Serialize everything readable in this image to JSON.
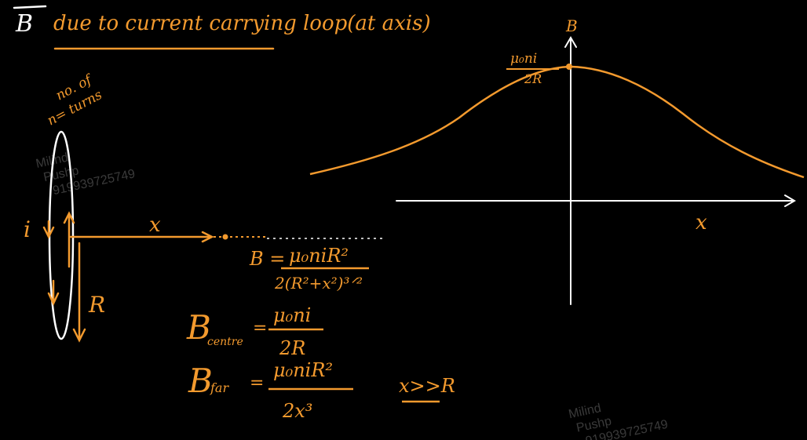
{
  "title": {
    "vec": "B",
    "rest": "due to current carrying loop(at axis)"
  },
  "loop_labels": {
    "turns_top": "no. of",
    "turns_bottom": "n= turns",
    "current": "i",
    "distance": "x",
    "radius": "R"
  },
  "formulas": {
    "axis_lhs": "B =",
    "axis_num": "μ₀niR²",
    "axis_den": "2(R²+x²)³ᐟ²",
    "centre_B": "B",
    "centre_sub": "centre",
    "centre_eq": "=",
    "centre_num": "μ₀ni",
    "centre_den": "2R",
    "far_B": "B",
    "far_sub": "far",
    "far_eq": "=",
    "far_num": "μ₀niR²",
    "far_den": "2x³",
    "condition": "x>>R"
  },
  "graph": {
    "y_label": "B",
    "x_label": "x",
    "peak_num": "μ₀ni",
    "peak_den": "2R"
  },
  "watermark": {
    "line1": "Milind",
    "line2": "Pushp",
    "line3": "919939725749"
  },
  "colors": {
    "ink": "#f39a2e",
    "white": "#ffffff",
    "watermark": "#3a3a3a"
  }
}
